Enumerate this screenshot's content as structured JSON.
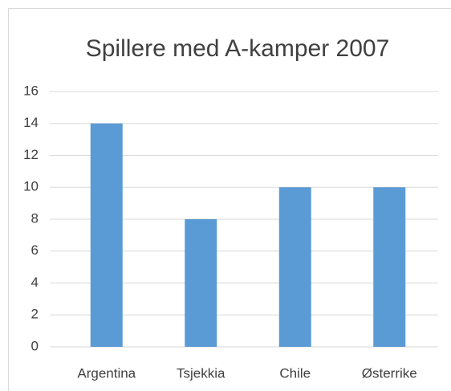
{
  "chart_data": {
    "type": "bar",
    "title": "Spillere med A-kamper 2007",
    "categories": [
      "Argentina",
      "Tsjekkia",
      "Chile",
      "Østerrike"
    ],
    "values": [
      14,
      8,
      10,
      10
    ],
    "color": "#5b9bd5",
    "ylim": [
      0,
      16
    ],
    "yticks": [
      0,
      2,
      4,
      6,
      8,
      10,
      12,
      14,
      16
    ],
    "grid": true
  }
}
